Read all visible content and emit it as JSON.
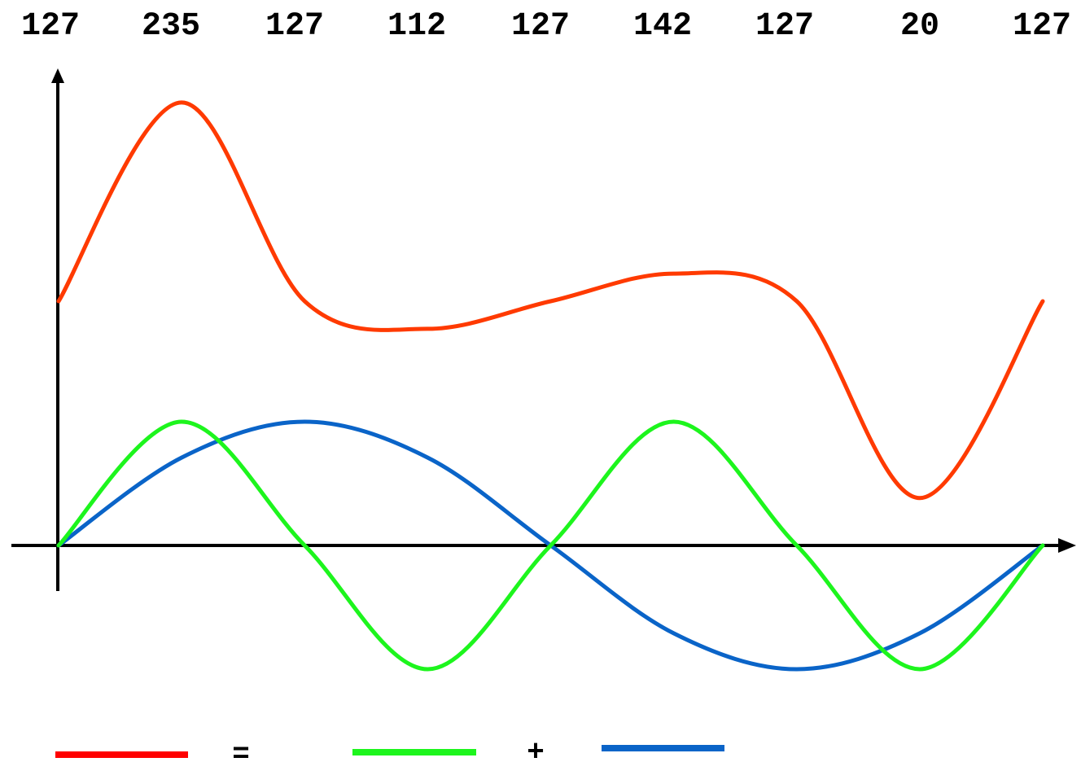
{
  "top_labels": [
    "127",
    "235",
    "127",
    "112",
    "127",
    "142",
    "127",
    "20",
    "127"
  ],
  "legend": {
    "equals": "=",
    "plus": "+"
  },
  "colors": {
    "sum": "#ff3a00",
    "component_1": "#1df51d",
    "component_2": "#0a64c8",
    "legend_sum": "#ff0000",
    "axis": "#000000"
  },
  "chart_data": {
    "type": "line",
    "x": [
      0,
      0.125,
      0.25,
      0.375,
      0.5,
      0.625,
      0.75,
      0.875,
      1.0
    ],
    "series": [
      {
        "values": [
          127,
          235,
          127,
          112,
          127,
          142,
          127,
          20,
          127
        ]
      },
      {
        "values": [
          0,
          1,
          0,
          -1,
          0,
          1,
          0,
          -1,
          0
        ]
      },
      {
        "values": [
          0,
          0.71,
          1,
          0.71,
          0,
          -0.71,
          -1,
          -0.71,
          0
        ]
      }
    ]
  }
}
